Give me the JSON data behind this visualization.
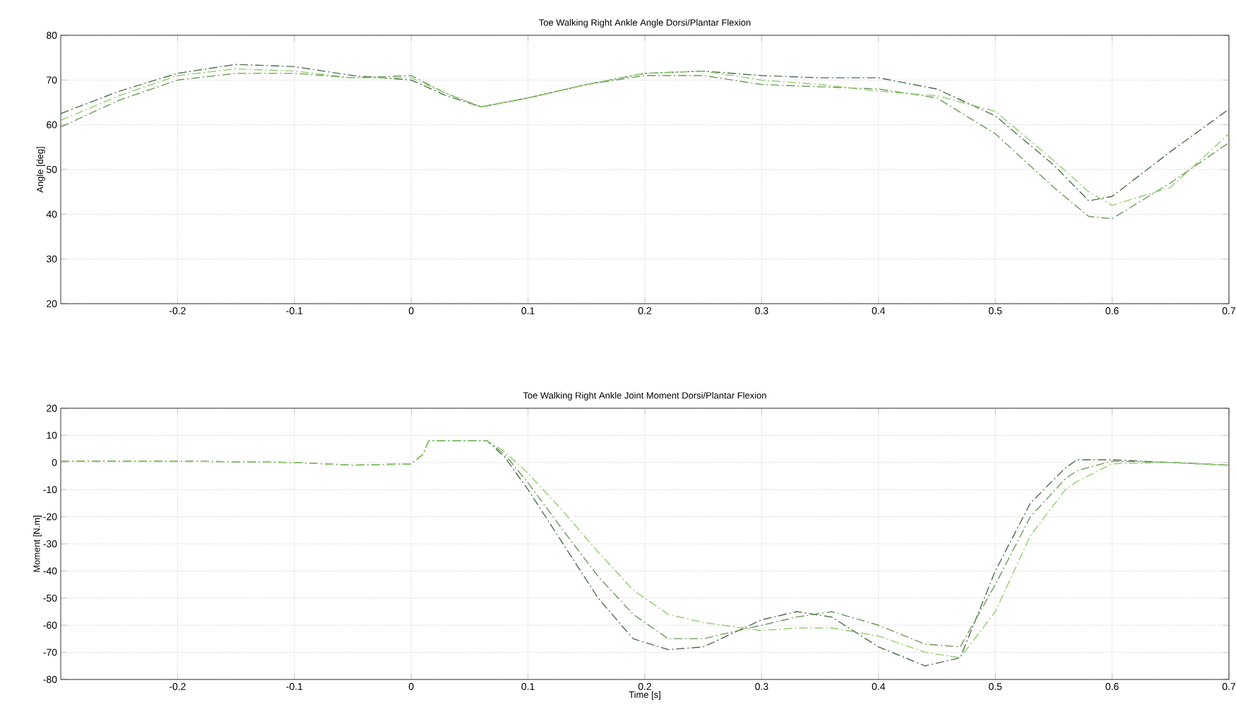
{
  "chart_data": [
    {
      "type": "line",
      "title": "Toe Walking   Right Ankle Angle  Dorsi/Plantar Flexion",
      "ylabel": "Angle [deg]",
      "x": [
        -0.3,
        -0.25,
        -0.2,
        -0.15,
        -0.1,
        -0.05,
        0,
        0.03,
        0.06,
        0.1,
        0.15,
        0.2,
        0.25,
        0.3,
        0.35,
        0.4,
        0.45,
        0.5,
        0.55,
        0.58,
        0.6,
        0.65,
        0.7
      ],
      "series": [
        {
          "color": "#4d6e4d",
          "values": [
            62.5,
            67.5,
            71.5,
            73.5,
            73,
            71,
            70,
            66.5,
            64,
            66,
            69,
            71.5,
            72,
            71,
            70.5,
            70.5,
            68,
            62,
            51,
            43,
            44,
            54,
            63.5
          ]
        },
        {
          "color": "#6b9a5a",
          "values": [
            59.5,
            65.5,
            70,
            71.5,
            71.5,
            70.5,
            71,
            67,
            64,
            66,
            69,
            71,
            71,
            69,
            68.5,
            68,
            66,
            58,
            46,
            39.5,
            39,
            47,
            56
          ]
        },
        {
          "color": "#8fcf6a",
          "values": [
            61,
            66.5,
            71,
            72.5,
            72,
            70.5,
            70.5,
            67,
            64,
            66,
            69,
            71.5,
            72,
            70,
            69,
            67.5,
            66.5,
            63,
            52,
            45,
            42,
            46,
            58
          ]
        }
      ],
      "xlim": [
        -0.3,
        0.7
      ],
      "ylim": [
        20,
        80
      ],
      "xticks": [
        -0.2,
        -0.1,
        0,
        0.1,
        0.2,
        0.3,
        0.4,
        0.5,
        0.6,
        0.7
      ],
      "yticks": [
        20,
        30,
        40,
        50,
        60,
        70,
        80
      ],
      "grid": true,
      "line_style": "dashed"
    },
    {
      "type": "line",
      "title": "Toe Walking   Right Ankle Joint Moment Dorsi/Plantar Flexion",
      "ylabel": "Moment [N.m]",
      "xlabel": "Time [s]",
      "x": [
        -0.3,
        -0.2,
        -0.1,
        -0.05,
        0,
        0.01,
        0.015,
        0.03,
        0.065,
        0.08,
        0.1,
        0.13,
        0.16,
        0.19,
        0.22,
        0.25,
        0.3,
        0.33,
        0.36,
        0.4,
        0.44,
        0.47,
        0.5,
        0.53,
        0.56,
        0.57,
        0.6,
        0.65,
        0.7
      ],
      "series": [
        {
          "color": "#4d6e4d",
          "values": [
            0.5,
            0.5,
            0,
            -1,
            -0.5,
            3,
            8,
            8,
            8,
            2,
            -10,
            -30,
            -50,
            -65,
            -69,
            -68,
            -58,
            -55,
            -57,
            -68,
            -75,
            -72,
            -40,
            -15,
            -2,
            1,
            1,
            0,
            -1
          ]
        },
        {
          "color": "#6b9a5a",
          "values": [
            0.5,
            0.5,
            0,
            -1,
            -0.5,
            3,
            8,
            8,
            8,
            3,
            -7.5,
            -25,
            -42,
            -56,
            -65,
            -65,
            -60,
            -57,
            -55,
            -60,
            -67,
            -68,
            -45,
            -20,
            -6,
            -3,
            0.5,
            0,
            -1
          ]
        },
        {
          "color": "#8fcf6a",
          "values": [
            0.5,
            0.5,
            0,
            -1,
            -0.5,
            3,
            8,
            8,
            8,
            4,
            -4,
            -18,
            -33,
            -47,
            -56,
            -59,
            -62,
            -61,
            -61,
            -64,
            -70,
            -72,
            -55,
            -27,
            -10,
            -7,
            -0.5,
            0,
            -1
          ]
        }
      ],
      "xlim": [
        -0.3,
        0.7
      ],
      "ylim": [
        -80,
        20
      ],
      "xticks": [
        -0.2,
        -0.1,
        0,
        0.1,
        0.2,
        0.3,
        0.4,
        0.5,
        0.6,
        0.7
      ],
      "yticks": [
        -80,
        -70,
        -60,
        -50,
        -40,
        -30,
        -20,
        -10,
        0,
        10,
        20
      ],
      "grid": true,
      "line_style": "dashed"
    }
  ]
}
